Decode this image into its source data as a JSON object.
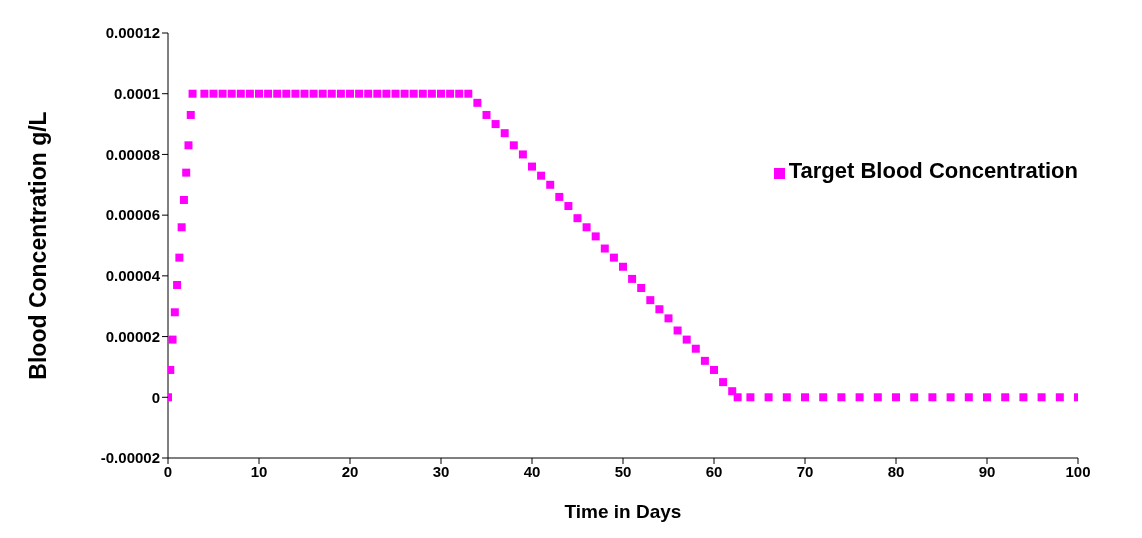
{
  "chart_data": {
    "type": "scatter",
    "xlabel": "Time in Days",
    "ylabel": "Blood Concentration  g/L",
    "x": [
      0,
      0.25,
      0.5,
      0.75,
      1,
      1.25,
      1.5,
      1.75,
      2,
      2.25,
      2.5,
      2.7,
      4,
      5,
      6,
      7,
      8,
      9,
      10,
      11,
      12,
      13,
      14,
      15,
      16,
      17,
      18,
      19,
      20,
      21,
      22,
      23,
      24,
      25,
      26,
      27,
      28,
      29,
      30,
      31,
      32,
      33,
      34,
      35,
      36,
      37,
      38,
      39,
      40,
      41,
      42,
      43,
      44,
      45,
      46,
      47,
      48,
      49,
      50,
      51,
      52,
      53,
      54,
      55,
      56,
      57,
      58,
      59,
      60,
      61,
      62,
      62.6,
      64,
      66,
      68,
      70,
      72,
      74,
      76,
      78,
      80,
      82,
      84,
      86,
      88,
      90,
      92,
      94,
      96,
      98,
      100
    ],
    "series": [
      {
        "name": "Target Blood Concentration",
        "color": "#ff00ff",
        "values": [
          0,
          9e-06,
          1.9e-05,
          2.8e-05,
          3.7e-05,
          4.6e-05,
          5.6e-05,
          6.5e-05,
          7.4e-05,
          8.3e-05,
          9.3e-05,
          0.0001,
          0.0001,
          0.0001,
          0.0001,
          0.0001,
          0.0001,
          0.0001,
          0.0001,
          0.0001,
          0.0001,
          0.0001,
          0.0001,
          0.0001,
          0.0001,
          0.0001,
          0.0001,
          0.0001,
          0.0001,
          0.0001,
          0.0001,
          0.0001,
          0.0001,
          0.0001,
          0.0001,
          0.0001,
          0.0001,
          0.0001,
          0.0001,
          0.0001,
          0.0001,
          0.0001,
          9.7e-05,
          9.3e-05,
          9e-05,
          8.7e-05,
          8.3e-05,
          8e-05,
          7.6e-05,
          7.3e-05,
          7e-05,
          6.6e-05,
          6.3e-05,
          5.9e-05,
          5.6e-05,
          5.3e-05,
          4.9e-05,
          4.6e-05,
          4.3e-05,
          3.9e-05,
          3.6e-05,
          3.2e-05,
          2.9e-05,
          2.6e-05,
          2.2e-05,
          1.9e-05,
          1.6e-05,
          1.2e-05,
          9e-06,
          5e-06,
          2e-06,
          0,
          0,
          0,
          0,
          0,
          0,
          0,
          0,
          0,
          0,
          0,
          0,
          0,
          0,
          0,
          0,
          0,
          0,
          0,
          0
        ]
      }
    ],
    "xlim": [
      0,
      100
    ],
    "xticks": [
      0,
      10,
      20,
      30,
      40,
      50,
      60,
      70,
      80,
      90,
      100
    ],
    "ylim": [
      -2e-05,
      0.00012
    ],
    "yticks": [
      {
        "value": -2e-05,
        "label": "-0.00002"
      },
      0,
      {
        "value": 2e-05,
        "label": "0.00002"
      },
      {
        "value": 4e-05,
        "label": "0.00004"
      },
      {
        "value": 6e-05,
        "label": "0.00006"
      },
      {
        "value": 8e-05,
        "label": "0.00008"
      },
      0.0001,
      0.00012
    ],
    "grid": false,
    "legend": "right",
    "marker": "square"
  }
}
